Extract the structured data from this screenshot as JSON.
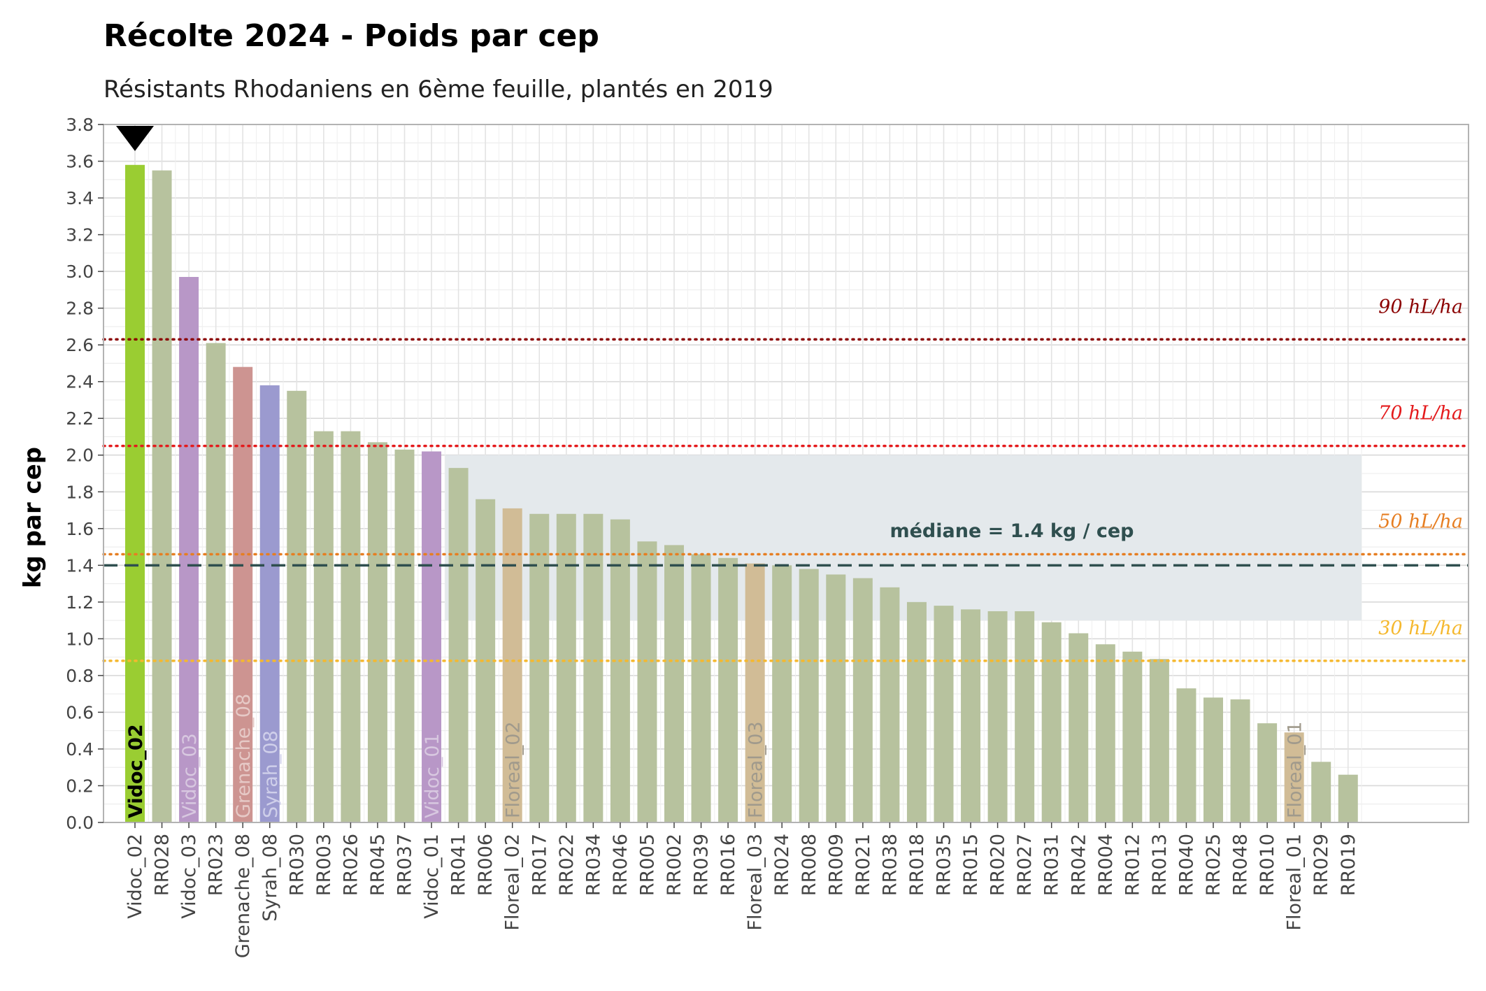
{
  "title": "Récolte 2024 - Poids par cep",
  "subtitle": "Résistants Rhodaniens en 6ème feuille, plantés en 2019",
  "chart_data": {
    "type": "bar",
    "ylabel": "kg par cep",
    "xlabel": "",
    "ylim": [
      0,
      3.8
    ],
    "yticks": [
      "0.0",
      "0.2",
      "0.4",
      "0.6",
      "0.8",
      "1.0",
      "1.2",
      "1.4",
      "1.6",
      "1.8",
      "2.0",
      "2.2",
      "2.4",
      "2.6",
      "2.8",
      "3.0",
      "3.2",
      "3.4",
      "3.6",
      "3.8"
    ],
    "grid": true,
    "categories": [
      "Vidoc_02",
      "RR028",
      "Vidoc_03",
      "RR023",
      "Grenache_08",
      "Syrah_08",
      "RR030",
      "RR003",
      "RR026",
      "RR045",
      "RR037",
      "Vidoc_01",
      "RR041",
      "RR006",
      "Floreal_02",
      "RR017",
      "RR022",
      "RR034",
      "RR046",
      "RR005",
      "RR002",
      "RR039",
      "RR016",
      "Floreal_03",
      "RR024",
      "RR008",
      "RR009",
      "RR021",
      "RR038",
      "RR018",
      "RR035",
      "RR015",
      "RR020",
      "RR027",
      "RR031",
      "RR042",
      "RR004",
      "RR012",
      "RR013",
      "RR040",
      "RR025",
      "RR048",
      "RR010",
      "Floreal_01",
      "RR029",
      "RR019"
    ],
    "values": [
      3.58,
      3.55,
      2.97,
      2.61,
      2.48,
      2.38,
      2.35,
      2.13,
      2.13,
      2.07,
      2.03,
      2.02,
      1.93,
      1.76,
      1.71,
      1.68,
      1.68,
      1.68,
      1.65,
      1.53,
      1.51,
      1.46,
      1.44,
      1.41,
      1.4,
      1.38,
      1.35,
      1.33,
      1.28,
      1.2,
      1.18,
      1.16,
      1.15,
      1.15,
      1.09,
      1.03,
      0.97,
      0.93,
      0.89,
      0.73,
      0.68,
      0.67,
      0.54,
      0.49,
      0.33,
      0.26
    ],
    "bar_colors": [
      "#9acd32",
      "#b7c29e",
      "#b897c7",
      "#b7c29e",
      "#cd9491",
      "#9b9acf",
      "#b7c29e",
      "#b7c29e",
      "#b7c29e",
      "#b7c29e",
      "#b7c29e",
      "#b897c7",
      "#b7c29e",
      "#b7c29e",
      "#d1bc96",
      "#b7c29e",
      "#b7c29e",
      "#b7c29e",
      "#b7c29e",
      "#b7c29e",
      "#b7c29e",
      "#b7c29e",
      "#b7c29e",
      "#d1bc96",
      "#b7c29e",
      "#b7c29e",
      "#b7c29e",
      "#b7c29e",
      "#b7c29e",
      "#b7c29e",
      "#b7c29e",
      "#b7c29e",
      "#b7c29e",
      "#b7c29e",
      "#b7c29e",
      "#b7c29e",
      "#b7c29e",
      "#b7c29e",
      "#b7c29e",
      "#b7c29e",
      "#b7c29e",
      "#b7c29e",
      "#b7c29e",
      "#d1bc96",
      "#b7c29e",
      "#b7c29e"
    ],
    "inside_labels": [
      {
        "index": 0,
        "text": "Vidoc_02",
        "color": "#000000",
        "bold": true
      },
      {
        "index": 2,
        "text": "Vidoc_03",
        "color": "#d8c8e0"
      },
      {
        "index": 4,
        "text": "Grenache_08",
        "color": "#e6c9c6"
      },
      {
        "index": 5,
        "text": "Syrah_08",
        "color": "#cfcfea"
      },
      {
        "index": 11,
        "text": "Vidoc_01",
        "color": "#d8c8e0"
      },
      {
        "index": 14,
        "text": "Floreal_02",
        "color": "#a09a8c"
      },
      {
        "index": 23,
        "text": "Floreal_03",
        "color": "#a09a8c"
      },
      {
        "index": 43,
        "text": "Floreal_01",
        "color": "#a09a8c"
      }
    ],
    "highlight_marker": {
      "index": 0,
      "shape": "triangle-down",
      "color": "#000000"
    },
    "shaded_band": {
      "ymin": 1.1,
      "ymax": 2.0,
      "from_index": 12,
      "to_index": 45,
      "color": "#e4e9ec"
    },
    "reference_lines": [
      {
        "label": "90 hL/ha",
        "y": 2.63,
        "color": "#8b0000"
      },
      {
        "label": "70 hL/ha",
        "y": 2.05,
        "color": "#e41a1c"
      },
      {
        "label": "50 hL/ha",
        "y": 1.46,
        "color": "#e67e22"
      },
      {
        "label": "30 hL/ha",
        "y": 0.88,
        "color": "#f5b82e"
      }
    ],
    "median": {
      "value": 1.4,
      "label": "médiane = 1.4 kg / cep",
      "color": "#2f4f4f"
    }
  }
}
